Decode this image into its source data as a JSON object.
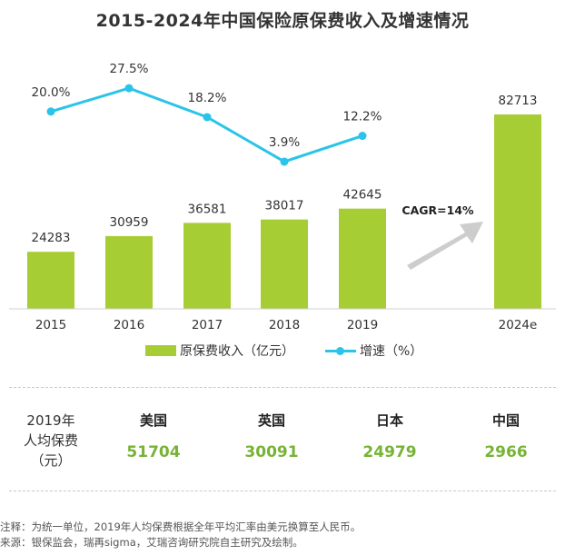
{
  "title": "2015-2024年中国保险原保费收入及增速情况",
  "chart_data": {
    "type": "bar",
    "categories": [
      "2015",
      "2016",
      "2017",
      "2018",
      "2019",
      "2024e"
    ],
    "series": [
      {
        "name": "原保费收入（亿元）",
        "type": "bar",
        "color": "#a7cd34",
        "values": [
          24283,
          30959,
          36581,
          38017,
          42645,
          82713
        ]
      },
      {
        "name": "增速（%）",
        "type": "line",
        "color": "#2ac4e8",
        "values": [
          20.0,
          27.5,
          18.2,
          3.9,
          12.2,
          null
        ],
        "labels": [
          "20.0%",
          "27.5%",
          "18.2%",
          "3.9%",
          "12.2%",
          ""
        ]
      }
    ],
    "annotation": "CAGR=14%",
    "legend_position": "bottom"
  },
  "table": {
    "row_label_lines": [
      "2019年",
      "人均保费",
      "（元）"
    ],
    "columns": [
      {
        "country": "美国",
        "value": "51704"
      },
      {
        "country": "英国",
        "value": "30091"
      },
      {
        "country": "日本",
        "value": "24979"
      },
      {
        "country": "中国",
        "value": "2966"
      }
    ]
  },
  "notes": [
    "注释：为统一单位，2019年人均保费根据全年平均汇率由美元换算至人民币。",
    "来源：银保监会，瑞再sigma，艾瑞咨询研究院自主研究及绘制。"
  ]
}
